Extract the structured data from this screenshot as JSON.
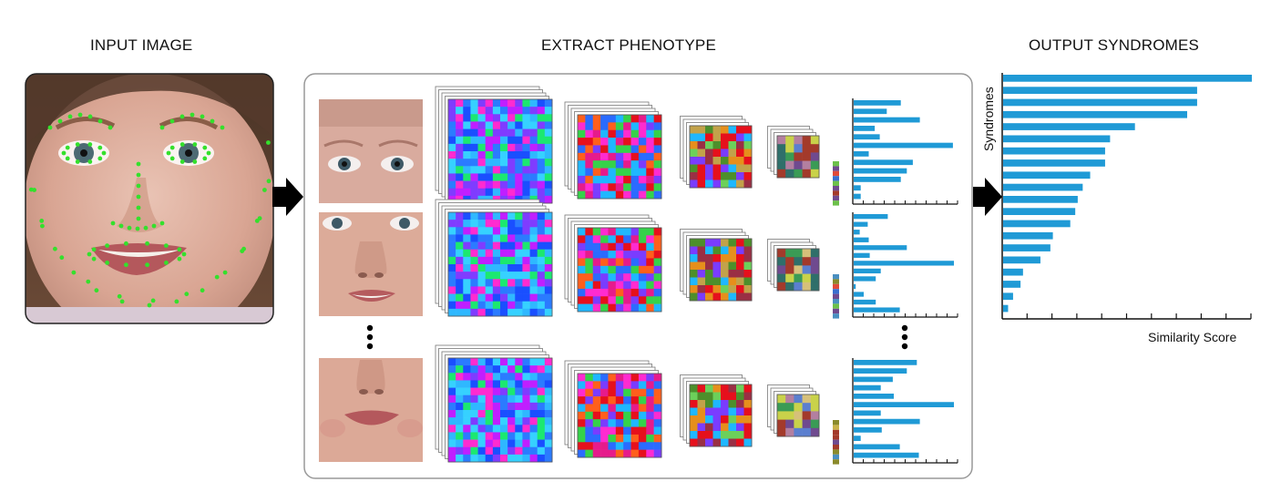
{
  "sections": {
    "input_title": "INPUT IMAGE",
    "extract_title": "EXTRACT PHENOTYPE",
    "output_title": "OUTPUT SYNDROMES"
  },
  "output_chart": {
    "y_label": "Syndromes",
    "x_label": "Similarity Score"
  },
  "chart_data": [
    {
      "type": "bar",
      "orientation": "horizontal",
      "ylabel": "Syndromes",
      "xlabel": "Similarity Score",
      "xlim": [
        0,
        10
      ],
      "x_ticks": 10,
      "values": [
        10,
        7.8,
        7.8,
        7.4,
        5.3,
        4.3,
        4.1,
        4.1,
        3.5,
        3.2,
        3.0,
        2.9,
        2.7,
        2.0,
        1.9,
        1.5,
        0.8,
        0.7,
        0.4,
        0.2
      ]
    },
    {
      "type": "bar",
      "orientation": "horizontal",
      "values": [
        4.7,
        3.3,
        6.6,
        2.1,
        2.6,
        9.9,
        1.5,
        5.9,
        5.3,
        4.7,
        0.7,
        0.7
      ],
      "x_ticks": 10
    },
    {
      "type": "bar",
      "orientation": "horizontal",
      "values": [
        3.4,
        1.4,
        0.6,
        1.5,
        5.3,
        1.6,
        10.0,
        2.7,
        2.2,
        0.2,
        1.0,
        2.2,
        4.6
      ],
      "x_ticks": 10
    },
    {
      "type": "bar",
      "orientation": "horizontal",
      "values": [
        6.3,
        5.3,
        3.9,
        2.7,
        4.0,
        10.0,
        2.7,
        6.6,
        2.8,
        0.7,
        4.6,
        6.5
      ],
      "x_ticks": 10
    }
  ]
}
